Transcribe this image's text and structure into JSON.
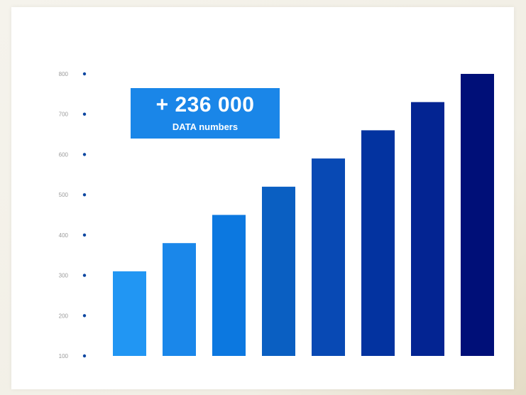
{
  "chart_data": {
    "type": "bar",
    "title": "",
    "xlabel": "",
    "ylabel": "",
    "ylim": [
      100,
      800
    ],
    "yticks": [
      "800",
      "700",
      "600",
      "500",
      "400",
      "300",
      "200",
      "100"
    ],
    "categories": [
      "",
      "",
      "",
      "",
      "",
      "",
      "",
      ""
    ],
    "values": [
      310,
      380,
      450,
      520,
      590,
      660,
      730,
      800
    ],
    "bar_colors": [
      "#2196f3",
      "#1a87ea",
      "#0c78e0",
      "#0a5fc2",
      "#0849b4",
      "#0333a0",
      "#032492",
      "#000f78"
    ],
    "tick_dot_color": "#0d47a1",
    "grid": false,
    "legend": "none"
  },
  "callout": {
    "value": "+ 236 000",
    "label": "DATA  numbers",
    "color": "#1a86e8"
  }
}
